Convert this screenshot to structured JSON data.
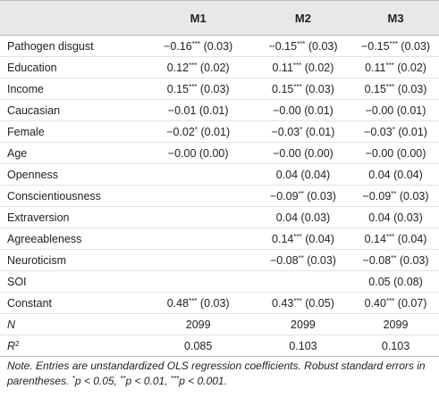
{
  "table": {
    "columns": [
      "M1",
      "M2",
      "M3"
    ],
    "rows": [
      {
        "label": "Pathogen disgust",
        "cells": [
          {
            "coef": "−0.16",
            "stars": "***",
            "se": "(0.03)"
          },
          {
            "coef": "−0.15",
            "stars": "***",
            "se": "(0.03)"
          },
          {
            "coef": "−0.15",
            "stars": "***",
            "se": "(0.03)"
          }
        ]
      },
      {
        "label": "Education",
        "cells": [
          {
            "coef": "0.12",
            "stars": "***",
            "se": "(0.02)"
          },
          {
            "coef": "0.11",
            "stars": "***",
            "se": "(0.02)"
          },
          {
            "coef": "0.11",
            "stars": "***",
            "se": "(0.02)"
          }
        ]
      },
      {
        "label": "Income",
        "cells": [
          {
            "coef": "0.15",
            "stars": "***",
            "se": "(0.03)"
          },
          {
            "coef": "0.15",
            "stars": "***",
            "se": "(0.03)"
          },
          {
            "coef": "0.15",
            "stars": "***",
            "se": "(0.03)"
          }
        ]
      },
      {
        "label": "Caucasian",
        "cells": [
          {
            "coef": "−0.01",
            "se": "(0.01)"
          },
          {
            "coef": "−0.00",
            "se": "(0.01)"
          },
          {
            "coef": "−0.00",
            "se": "(0.01)"
          }
        ]
      },
      {
        "label": "Female",
        "cells": [
          {
            "coef": "−0.02",
            "stars": "*",
            "se": "(0.01)"
          },
          {
            "coef": "−0.03",
            "stars": "*",
            "se": "(0.01)"
          },
          {
            "coef": "−0.03",
            "stars": "*",
            "se": "(0.01)"
          }
        ]
      },
      {
        "label": "Age",
        "cells": [
          {
            "coef": "−0.00",
            "se": "(0.00)"
          },
          {
            "coef": "−0.00",
            "se": "(0.00)"
          },
          {
            "coef": "−0.00",
            "se": "(0.00)"
          }
        ]
      },
      {
        "label": "Openness",
        "cells": [
          null,
          {
            "coef": "0.04",
            "se": "(0.04)"
          },
          {
            "coef": "0.04",
            "se": "(0.04)"
          }
        ]
      },
      {
        "label": "Conscientiousness",
        "cells": [
          null,
          {
            "coef": "−0.09",
            "stars": "**",
            "se": "(0.03)"
          },
          {
            "coef": "−0.09",
            "stars": "**",
            "se": "(0.03)"
          }
        ]
      },
      {
        "label": "Extraversion",
        "cells": [
          null,
          {
            "coef": "0.04",
            "se": "(0.03)"
          },
          {
            "coef": "0.04",
            "se": "(0.03)"
          }
        ]
      },
      {
        "label": "Agreeableness",
        "cells": [
          null,
          {
            "coef": "0.14",
            "stars": "***",
            "se": "(0.04)"
          },
          {
            "coef": "0.14",
            "stars": "***",
            "se": "(0.04)"
          }
        ]
      },
      {
        "label": "Neuroticism",
        "cells": [
          null,
          {
            "coef": "−0.08",
            "stars": "**",
            "se": "(0.03)"
          },
          {
            "coef": "−0.08",
            "stars": "**",
            "se": "(0.03)"
          }
        ]
      },
      {
        "label": "SOI",
        "cells": [
          null,
          null,
          {
            "coef": "0.05",
            "se": "(0.08)"
          }
        ]
      },
      {
        "label": "Constant",
        "cells": [
          {
            "coef": "0.48",
            "stars": "***",
            "se": "(0.03)"
          },
          {
            "coef": "0.43",
            "stars": "***",
            "se": "(0.05)"
          },
          {
            "coef": "0.40",
            "stars": "***",
            "se": "(0.07)"
          }
        ]
      },
      {
        "label": {
          "text": "N",
          "style": "italic"
        },
        "cells": [
          {
            "coef": "2099"
          },
          {
            "coef": "2099"
          },
          {
            "coef": "2099"
          }
        ]
      },
      {
        "label": {
          "text": "R",
          "sup": "2",
          "style": "italic"
        },
        "cells": [
          {
            "coef": "0.085"
          },
          {
            "coef": "0.103"
          },
          {
            "coef": "0.103"
          }
        ]
      }
    ]
  },
  "note": {
    "lead": "Note. Entries are unstandardized OLS regression coefficients. Robust standard errors in parentheses.",
    "thresholds": [
      {
        "stars": "*",
        "text": "p < 0.05,"
      },
      {
        "stars": "**",
        "text": "p < 0.01,"
      },
      {
        "stars": "***",
        "text": "p < 0.001."
      }
    ]
  }
}
